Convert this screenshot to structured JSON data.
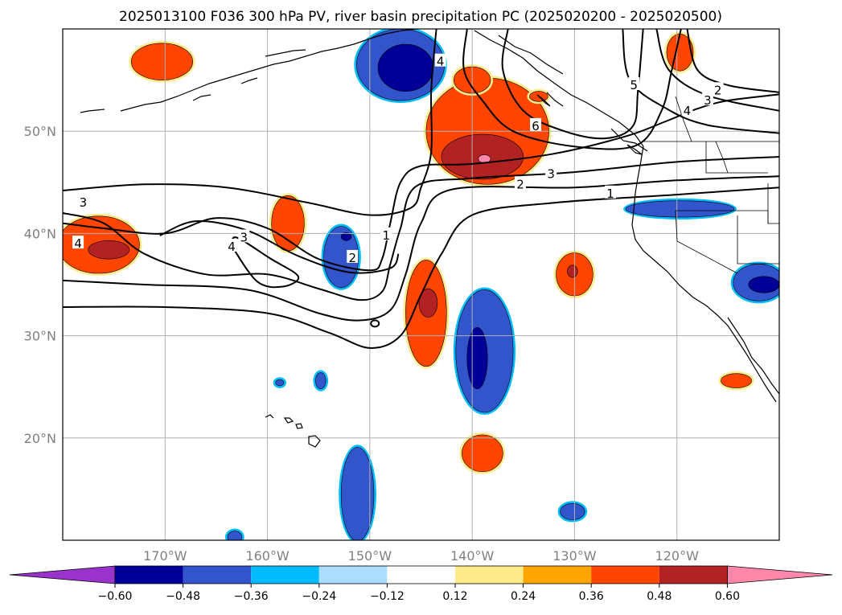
{
  "title": "2025013100 F036 300 hPa PV, river basin precipitation PC (2025020200 - 2025020500)",
  "map": {
    "lon_range": [
      -180,
      -110
    ],
    "lat_range": [
      10,
      60
    ],
    "lon_ticks": [
      {
        "value": -170,
        "label": "170°W"
      },
      {
        "value": -160,
        "label": "160°W"
      },
      {
        "value": -150,
        "label": "150°W"
      },
      {
        "value": -140,
        "label": "140°W"
      },
      {
        "value": -130,
        "label": "130°W"
      },
      {
        "value": -120,
        "label": "120°W"
      }
    ],
    "lat_ticks": [
      {
        "value": 20,
        "label": "20°N"
      },
      {
        "value": 30,
        "label": "30°N"
      },
      {
        "value": 40,
        "label": "40°N"
      },
      {
        "value": 50,
        "label": "50°N"
      }
    ]
  },
  "colorbar": {
    "colors": [
      "#9933cc",
      "#000099",
      "#3355cc",
      "#00bbff",
      "#aaddff",
      "#ffffff",
      "#ffeb8a",
      "#ffa500",
      "#ff4500",
      "#b22222",
      "#ff88aa"
    ],
    "ticks": [
      "−0.60",
      "−0.48",
      "−0.36",
      "−0.24",
      "−0.12",
      "0.12",
      "0.24",
      "0.36",
      "0.48",
      "0.60"
    ]
  },
  "contour_labels": [
    {
      "text": "4",
      "lon": -143.1,
      "lat": 56.8
    },
    {
      "text": "5",
      "lon": -124.2,
      "lat": 54.5
    },
    {
      "text": "2",
      "lon": -116.0,
      "lat": 54.0
    },
    {
      "text": "3",
      "lon": -117.0,
      "lat": 53.0
    },
    {
      "text": "4",
      "lon": -119.0,
      "lat": 52.0
    },
    {
      "text": "6",
      "lon": -133.8,
      "lat": 50.5
    },
    {
      "text": "3",
      "lon": -132.3,
      "lat": 45.8
    },
    {
      "text": "2",
      "lon": -135.3,
      "lat": 44.8
    },
    {
      "text": "1",
      "lon": -126.5,
      "lat": 43.9
    },
    {
      "text": "3",
      "lon": -178.0,
      "lat": 43.0
    },
    {
      "text": "3",
      "lon": -162.3,
      "lat": 39.6
    },
    {
      "text": "4",
      "lon": -163.5,
      "lat": 38.7
    },
    {
      "text": "4",
      "lon": -178.5,
      "lat": 39.0
    },
    {
      "text": "1",
      "lon": -148.4,
      "lat": 39.8
    },
    {
      "text": "2",
      "lon": -151.7,
      "lat": 37.6
    }
  ],
  "precip_blobs": [
    {
      "color": "#ff4500",
      "lon": -170.3,
      "lat": 56.8,
      "rx": 3.0,
      "ry": 1.8
    },
    {
      "color": "#ff4500",
      "lon": -119.7,
      "lat": 57.7,
      "rx": 1.3,
      "ry": 1.8
    },
    {
      "color": "#ff4500",
      "lon": -138.5,
      "lat": 50.0,
      "rx": 6.0,
      "ry": 5.2
    },
    {
      "color": "#b22222",
      "lon": -139.0,
      "lat": 47.5,
      "rx": 4.0,
      "ry": 2.2
    },
    {
      "color": "#ff88aa",
      "lon": -138.8,
      "lat": 47.3,
      "rx": 0.6,
      "ry": 0.4
    },
    {
      "color": "#ff4500",
      "lon": -140.0,
      "lat": 55.0,
      "rx": 1.8,
      "ry": 1.3
    },
    {
      "color": "#ff4500",
      "lon": -133.5,
      "lat": 53.4,
      "rx": 0.9,
      "ry": 0.5
    },
    {
      "color": "#ff4500",
      "lon": -158.0,
      "lat": 41.0,
      "rx": 1.6,
      "ry": 2.7
    },
    {
      "color": "#ff4500",
      "lon": -176.5,
      "lat": 38.9,
      "rx": 4.0,
      "ry": 2.8
    },
    {
      "color": "#b22222",
      "lon": -175.5,
      "lat": 38.4,
      "rx": 2.0,
      "ry": 0.9
    },
    {
      "color": "#ff4500",
      "lon": -144.5,
      "lat": 32.2,
      "rx": 2.0,
      "ry": 5.2
    },
    {
      "color": "#b22222",
      "lon": -144.3,
      "lat": 33.2,
      "rx": 0.9,
      "ry": 1.4
    },
    {
      "color": "#ff4500",
      "lon": -130.0,
      "lat": 36.0,
      "rx": 1.8,
      "ry": 2.1
    },
    {
      "color": "#b22222",
      "lon": -130.2,
      "lat": 36.3,
      "rx": 0.5,
      "ry": 0.6
    },
    {
      "color": "#ff4500",
      "lon": -139.0,
      "lat": 18.5,
      "rx": 2.0,
      "ry": 1.8
    },
    {
      "color": "#ff4500",
      "lon": -114.2,
      "lat": 25.6,
      "rx": 1.5,
      "ry": 0.7
    },
    {
      "color": "#3355cc",
      "lon": -147.0,
      "lat": 56.5,
      "rx": 4.3,
      "ry": 3.5
    },
    {
      "color": "#000099",
      "lon": -146.5,
      "lat": 56.2,
      "rx": 2.7,
      "ry": 2.3
    },
    {
      "color": "#3355cc",
      "lon": -152.8,
      "lat": 37.7,
      "rx": 1.7,
      "ry": 3.0
    },
    {
      "color": "#000099",
      "lon": -152.3,
      "lat": 39.7,
      "rx": 0.5,
      "ry": 0.4
    },
    {
      "color": "#3355cc",
      "lon": -138.8,
      "lat": 28.5,
      "rx": 2.8,
      "ry": 6.0
    },
    {
      "color": "#000099",
      "lon": -139.5,
      "lat": 27.8,
      "rx": 1.0,
      "ry": 3.0
    },
    {
      "color": "#3355cc",
      "lon": -119.7,
      "lat": 42.4,
      "rx": 5.3,
      "ry": 0.8
    },
    {
      "color": "#3355cc",
      "lon": -112.0,
      "lat": 35.2,
      "rx": 2.5,
      "ry": 1.8
    },
    {
      "color": "#000099",
      "lon": -111.5,
      "lat": 35.0,
      "rx": 1.5,
      "ry": 0.8
    },
    {
      "color": "#3355cc",
      "lon": -151.2,
      "lat": 14.5,
      "rx": 1.6,
      "ry": 4.6
    },
    {
      "color": "#3355cc",
      "lon": -130.2,
      "lat": 12.8,
      "rx": 1.2,
      "ry": 0.8
    },
    {
      "color": "#3355cc",
      "lon": -163.2,
      "lat": 10.3,
      "rx": 0.7,
      "ry": 0.6
    },
    {
      "color": "#3355cc",
      "lon": -154.8,
      "lat": 25.6,
      "rx": 0.5,
      "ry": 0.8
    },
    {
      "color": "#3355cc",
      "lon": -158.8,
      "lat": 25.4,
      "rx": 0.4,
      "ry": 0.3
    }
  ],
  "contours": [
    {
      "level": "3",
      "points": [
        [
          -180,
          44.2
        ],
        [
          -172,
          44.8
        ],
        [
          -164,
          44.5
        ],
        [
          -156,
          43.0
        ],
        [
          -150,
          41.8
        ],
        [
          -146,
          42.5
        ],
        [
          -145,
          44.5
        ],
        [
          -144,
          48.0
        ],
        [
          -144,
          54
        ],
        [
          -143.5,
          60
        ]
      ]
    },
    {
      "level": "1",
      "points": [
        [
          -180,
          32.8
        ],
        [
          -170,
          32.8
        ],
        [
          -160,
          32.2
        ],
        [
          -154,
          30.3
        ],
        [
          -150,
          28.8
        ],
        [
          -147,
          30
        ],
        [
          -145,
          34
        ],
        [
          -143,
          38
        ],
        [
          -140,
          41.8
        ],
        [
          -132,
          43.0
        ],
        [
          -120,
          43.8
        ],
        [
          -110,
          44.5
        ]
      ]
    },
    {
      "level": "2",
      "points": [
        [
          -180,
          35.4
        ],
        [
          -172,
          35
        ],
        [
          -162,
          34.5
        ],
        [
          -155,
          32.2
        ],
        [
          -151,
          31.5
        ],
        [
          -148,
          32.5
        ],
        [
          -146.5,
          36
        ],
        [
          -145,
          41
        ],
        [
          -142,
          44.3
        ],
        [
          -130,
          44.5
        ],
        [
          -120,
          45.2
        ],
        [
          -110,
          45.6
        ]
      ]
    },
    {
      "level": "3b",
      "points": [
        [
          -180,
          42.0
        ],
        [
          -176,
          41.0
        ],
        [
          -172,
          38.0
        ],
        [
          -166,
          36.0
        ],
        [
          -160,
          36.0
        ],
        [
          -155,
          34.6
        ],
        [
          -151,
          33.5
        ],
        [
          -148.8,
          34.3
        ],
        [
          -148,
          37
        ],
        [
          -147,
          40.5
        ],
        [
          -145.5,
          44.6
        ],
        [
          -140,
          45.4
        ],
        [
          -130,
          46.0
        ],
        [
          -120,
          47.0
        ],
        [
          -110,
          47.5
        ]
      ]
    },
    {
      "level": "4",
      "points": [
        [
          -180,
          41.0
        ],
        [
          -176,
          40.5
        ],
        [
          -170,
          40
        ],
        [
          -165,
          41.5
        ],
        [
          -160,
          40.5
        ],
        [
          -155,
          37.5
        ],
        [
          -150,
          36.4
        ],
        [
          -148.8,
          37.5
        ],
        [
          -148,
          41
        ],
        [
          -147,
          45
        ],
        [
          -145,
          46.6
        ],
        [
          -140,
          46.8
        ],
        [
          -132,
          47.8
        ],
        [
          -125,
          49.5
        ],
        [
          -121,
          51
        ],
        [
          -118,
          52.2
        ],
        [
          -115,
          53
        ],
        [
          -110,
          53.6
        ]
      ]
    },
    {
      "level": "5",
      "points": [
        [
          -140.5,
          60
        ],
        [
          -140.8,
          56
        ],
        [
          -139,
          53
        ],
        [
          -136,
          50
        ],
        [
          -130,
          48.5
        ],
        [
          -124,
          48.6
        ],
        [
          -121.5,
          52
        ],
        [
          -120.5,
          56
        ],
        [
          -119.6,
          60
        ]
      ]
    },
    {
      "level": "6",
      "points": [
        [
          -136.5,
          60
        ],
        [
          -137,
          56
        ],
        [
          -135,
          52
        ],
        [
          -131,
          50
        ],
        [
          -127,
          49.3
        ],
        [
          -124.3,
          50.5
        ],
        [
          -123.8,
          54
        ],
        [
          -123.3,
          60
        ]
      ]
    },
    {
      "level": "in3",
      "points": [
        [
          -170.5,
          39.8
        ],
        [
          -167,
          41.2
        ],
        [
          -162,
          40.3
        ],
        [
          -157,
          37.8
        ],
        [
          -152,
          36.2
        ],
        [
          -148,
          36.6
        ],
        [
          -147.2,
          38.0
        ]
      ]
    },
    {
      "level": "in4",
      "points": [
        [
          -163.5,
          38.8
        ],
        [
          -161,
          35.3
        ],
        [
          -158.5,
          34.8
        ],
        [
          -157,
          35.8
        ],
        [
          -159.8,
          37.6
        ],
        [
          -163.0,
          39.6
        ],
        [
          -163.5,
          38.8
        ]
      ]
    },
    {
      "level": "ne2",
      "points": [
        [
          -119,
          60
        ],
        [
          -118,
          56
        ],
        [
          -115,
          54.5
        ],
        [
          -110,
          53.8
        ]
      ]
    },
    {
      "level": "ne3",
      "points": [
        [
          -122,
          60
        ],
        [
          -120.8,
          56
        ],
        [
          -117,
          53.5
        ],
        [
          -110,
          52
        ]
      ]
    },
    {
      "level": "ne4",
      "points": [
        [
          -125.3,
          60
        ],
        [
          -124.6,
          55
        ],
        [
          -121,
          52.2
        ],
        [
          -117,
          50.6
        ],
        [
          -110,
          49.8
        ]
      ]
    }
  ]
}
